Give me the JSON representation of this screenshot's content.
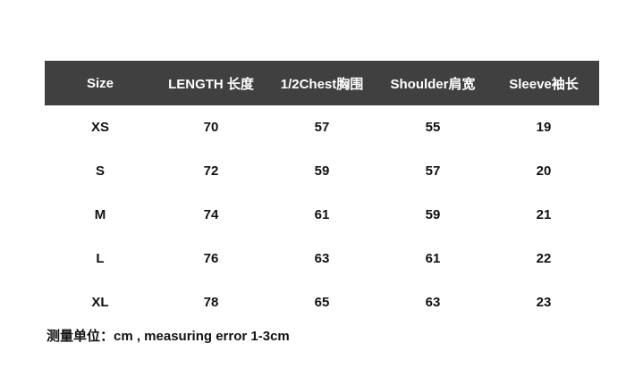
{
  "table": {
    "headers": [
      "Size",
      "LENGTH 长度",
      "1/2Chest胸围",
      "Shoulder肩宽",
      "Sleeve袖长"
    ],
    "rows": [
      [
        "XS",
        "70",
        "57",
        "55",
        "19"
      ],
      [
        "S",
        "72",
        "59",
        "57",
        "20"
      ],
      [
        "M",
        "74",
        "61",
        "59",
        "21"
      ],
      [
        "L",
        "76",
        "63",
        "61",
        "22"
      ],
      [
        "XL",
        "78",
        "65",
        "63",
        "23"
      ]
    ],
    "header_bg": "#404040"
  },
  "note": "测量单位：cm , measuring error 1-3cm"
}
